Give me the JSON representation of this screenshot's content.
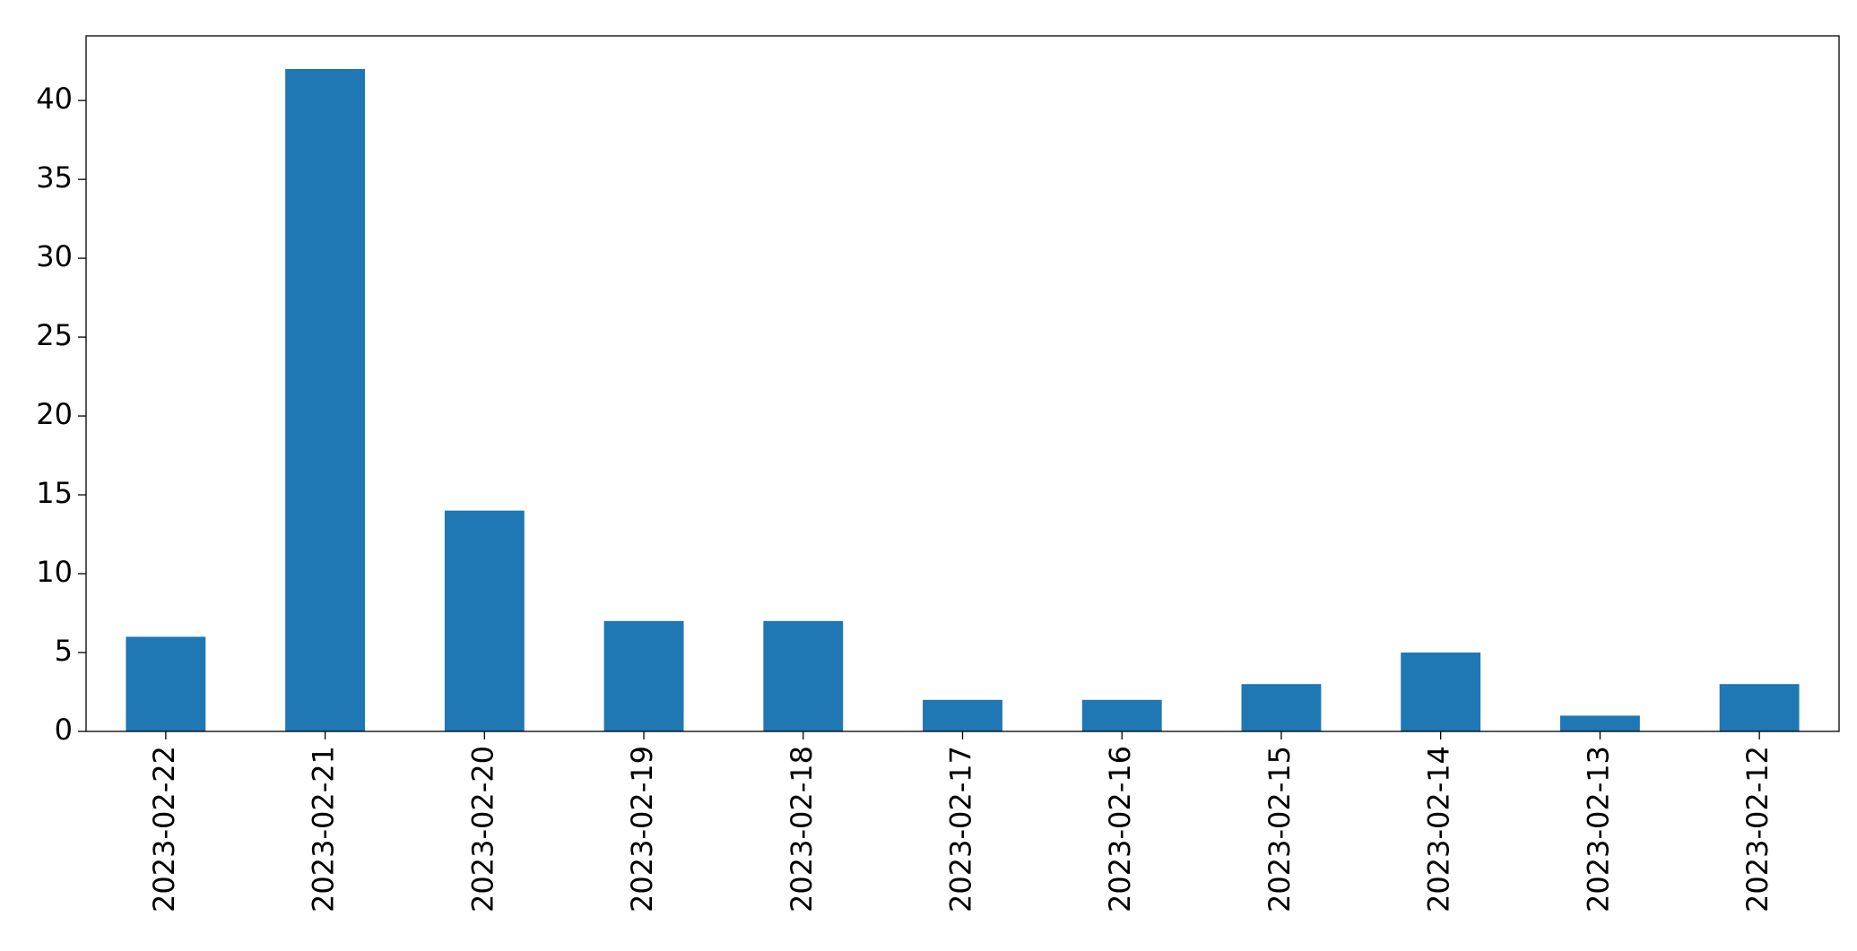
{
  "chart_data": {
    "type": "bar",
    "categories": [
      "2023-02-22",
      "2023-02-21",
      "2023-02-20",
      "2023-02-19",
      "2023-02-18",
      "2023-02-17",
      "2023-02-16",
      "2023-02-15",
      "2023-02-14",
      "2023-02-13",
      "2023-02-12"
    ],
    "values": [
      6,
      42,
      14,
      7,
      7,
      2,
      2,
      3,
      5,
      1,
      3
    ],
    "color": "#1f77b4",
    "ylim": [
      0,
      44.1
    ],
    "yticks": [
      0,
      5,
      10,
      15,
      20,
      25,
      30,
      35,
      40
    ],
    "grid": false
  }
}
